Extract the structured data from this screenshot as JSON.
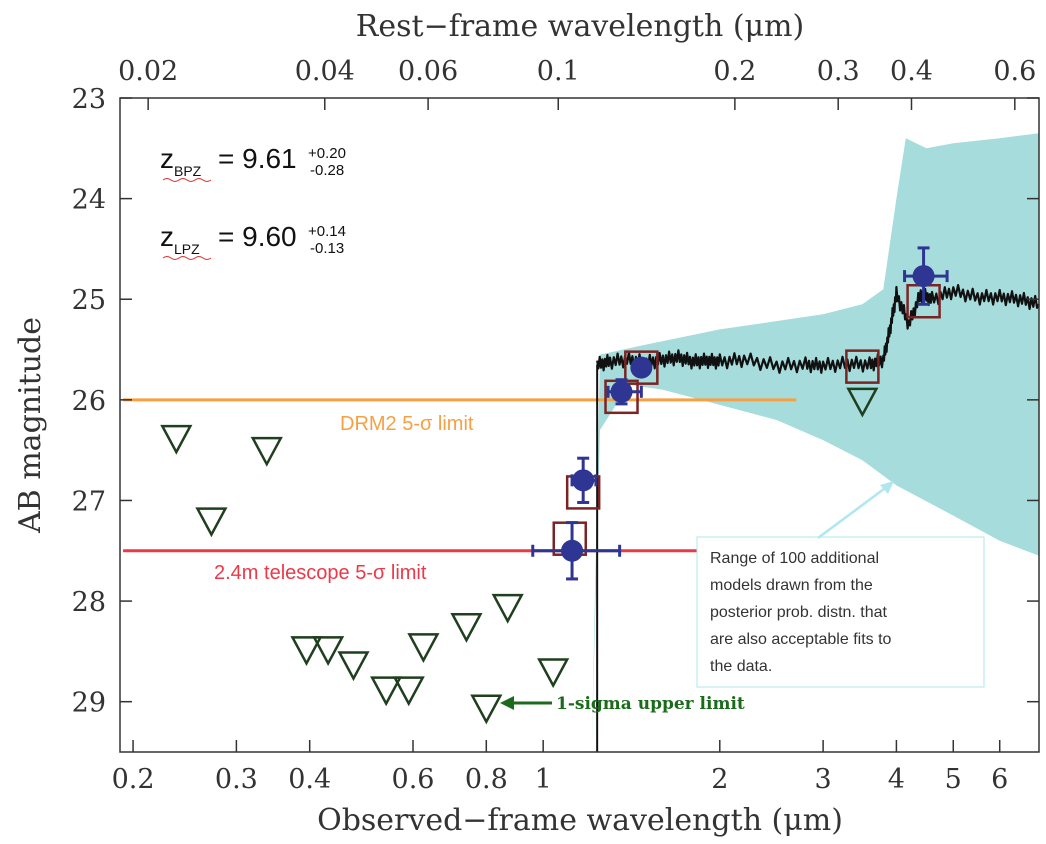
{
  "chart_data": {
    "type": "scatter",
    "title": "",
    "xlabel": "Observed−frame wavelength (μm)",
    "x2label": "Rest−frame wavelength (μm)",
    "ylabel": "AB magnitude",
    "xscale": "log",
    "xlim": [
      0.19,
      7.0
    ],
    "ylim": [
      29.5,
      23.0
    ],
    "grid": false,
    "x_ticks": [
      0.2,
      0.3,
      0.4,
      0.6,
      0.8,
      1,
      2,
      3,
      4,
      5,
      6
    ],
    "x_tick_labels": [
      "0.2",
      "0.3",
      "0.4",
      "0.6",
      "0.8",
      "1",
      "2",
      "3",
      "4",
      "5",
      "6"
    ],
    "x2_ticks": [
      0.02,
      0.04,
      0.06,
      0.1,
      0.2,
      0.3,
      0.4,
      0.6
    ],
    "x2_tick_labels": [
      "0.02",
      "0.04",
      "0.06",
      "0.1",
      "0.2",
      "0.3",
      "0.4",
      "0.6"
    ],
    "y_ticks": [
      23,
      24,
      25,
      26,
      27,
      28,
      29
    ],
    "y_tick_labels": [
      "23",
      "24",
      "25",
      "26",
      "27",
      "28",
      "29"
    ],
    "redshift_annotations": [
      {
        "label": "z",
        "sub": "BPZ",
        "value": "9.61",
        "plus": "+0.20",
        "minus": "-0.28"
      },
      {
        "label": "z",
        "sub": "LPZ",
        "value": "9.60",
        "plus": "+0.14",
        "minus": "-0.13"
      }
    ],
    "limit_lines": [
      {
        "label": "DRM2 5-σ limit",
        "y": 26.0,
        "x_range": [
          0.2,
          2.7
        ],
        "color": "#f7a043"
      },
      {
        "label": "2.4m telescope 5-σ limit",
        "y": 27.5,
        "x_range": [
          0.2,
          1.95
        ],
        "color": "#ec3848"
      }
    ],
    "detections": {
      "color": "#2f3592",
      "points": [
        {
          "x": 1.12,
          "y": 27.5,
          "xerr_low": 0.16,
          "xerr_high": 0.23,
          "yerr": 0.28
        },
        {
          "x": 1.17,
          "y": 26.8,
          "xerr_low": 0.05,
          "xerr_high": 0.06,
          "yerr": 0.22
        },
        {
          "x": 1.36,
          "y": 25.92,
          "xerr_low": 0.07,
          "xerr_high": 0.11,
          "yerr": 0.12
        },
        {
          "x": 1.47,
          "y": 25.68,
          "xerr_low": 0.0,
          "xerr_high": 0.0,
          "yerr": 0.0
        },
        {
          "x": 4.45,
          "y": 24.77,
          "xerr_low": 0.32,
          "xerr_high": 0.43,
          "yerr": 0.28
        }
      ]
    },
    "model_photometry": {
      "color": "#7a2424",
      "points": [
        {
          "x": 1.11,
          "y": 27.38
        },
        {
          "x": 1.17,
          "y": 26.92
        },
        {
          "x": 1.36,
          "y": 25.97
        },
        {
          "x": 1.47,
          "y": 25.68
        },
        {
          "x": 3.5,
          "y": 25.67
        },
        {
          "x": 4.45,
          "y": 25.02
        }
      ]
    },
    "upper_limits": {
      "color": "#1f3f1f",
      "points": [
        {
          "x": 0.237,
          "y": 26.4
        },
        {
          "x": 0.272,
          "y": 27.22
        },
        {
          "x": 0.338,
          "y": 26.52
        },
        {
          "x": 0.395,
          "y": 28.5
        },
        {
          "x": 0.43,
          "y": 28.5
        },
        {
          "x": 0.475,
          "y": 28.65
        },
        {
          "x": 0.54,
          "y": 28.9
        },
        {
          "x": 0.59,
          "y": 28.9
        },
        {
          "x": 0.625,
          "y": 28.47
        },
        {
          "x": 0.74,
          "y": 28.27
        },
        {
          "x": 0.8,
          "y": 29.08
        },
        {
          "x": 0.87,
          "y": 28.08
        },
        {
          "x": 1.04,
          "y": 28.72
        },
        {
          "x": 3.5,
          "y": 26.03
        }
      ]
    },
    "best_fit_sed": {
      "color": "#111111",
      "points": [
        [
          1.235,
          31.0
        ],
        [
          1.236,
          25.65
        ],
        [
          1.3,
          25.62
        ],
        [
          1.4,
          25.6
        ],
        [
          1.5,
          25.63
        ],
        [
          1.6,
          25.6
        ],
        [
          1.7,
          25.58
        ],
        [
          1.8,
          25.62
        ],
        [
          1.9,
          25.61
        ],
        [
          2.0,
          25.62
        ],
        [
          2.2,
          25.6
        ],
        [
          2.5,
          25.66
        ],
        [
          2.8,
          25.65
        ],
        [
          3.0,
          25.66
        ],
        [
          3.3,
          25.64
        ],
        [
          3.6,
          25.65
        ],
        [
          3.8,
          25.6
        ],
        [
          3.9,
          25.3
        ],
        [
          4.0,
          24.95
        ],
        [
          4.2,
          25.25
        ],
        [
          4.4,
          24.95
        ],
        [
          4.6,
          25.0
        ],
        [
          5.0,
          24.92
        ],
        [
          5.5,
          24.98
        ],
        [
          6.0,
          24.98
        ],
        [
          6.5,
          25.0
        ],
        [
          7.0,
          25.05
        ]
      ]
    },
    "model_range": {
      "label": "Range of 100 additional models drawn from the posterior prob. distn. that are also acceptable fits to the data.",
      "color": "#a6dcdc",
      "upper": [
        [
          1.21,
          29.5
        ],
        [
          1.25,
          25.55
        ],
        [
          1.5,
          25.45
        ],
        [
          2.0,
          25.3
        ],
        [
          3.0,
          25.15
        ],
        [
          3.5,
          25.05
        ],
        [
          3.8,
          24.9
        ],
        [
          4.0,
          24.0
        ],
        [
          4.15,
          23.4
        ],
        [
          4.5,
          23.5
        ],
        [
          5.0,
          23.45
        ],
        [
          6.0,
          23.4
        ],
        [
          7.0,
          23.35
        ]
      ],
      "lower": [
        [
          1.21,
          29.5
        ],
        [
          1.25,
          26.3
        ],
        [
          1.4,
          25.85
        ],
        [
          1.6,
          25.9
        ],
        [
          2.0,
          26.05
        ],
        [
          2.5,
          26.2
        ],
        [
          3.0,
          26.4
        ],
        [
          3.5,
          26.6
        ],
        [
          4.0,
          26.85
        ],
        [
          5.0,
          27.15
        ],
        [
          6.0,
          27.4
        ],
        [
          7.0,
          27.55
        ]
      ]
    },
    "arrow_label": "1-sigma upper limit",
    "arrow_color": "#1c6b1c",
    "callout_color": "#aee8ee"
  }
}
